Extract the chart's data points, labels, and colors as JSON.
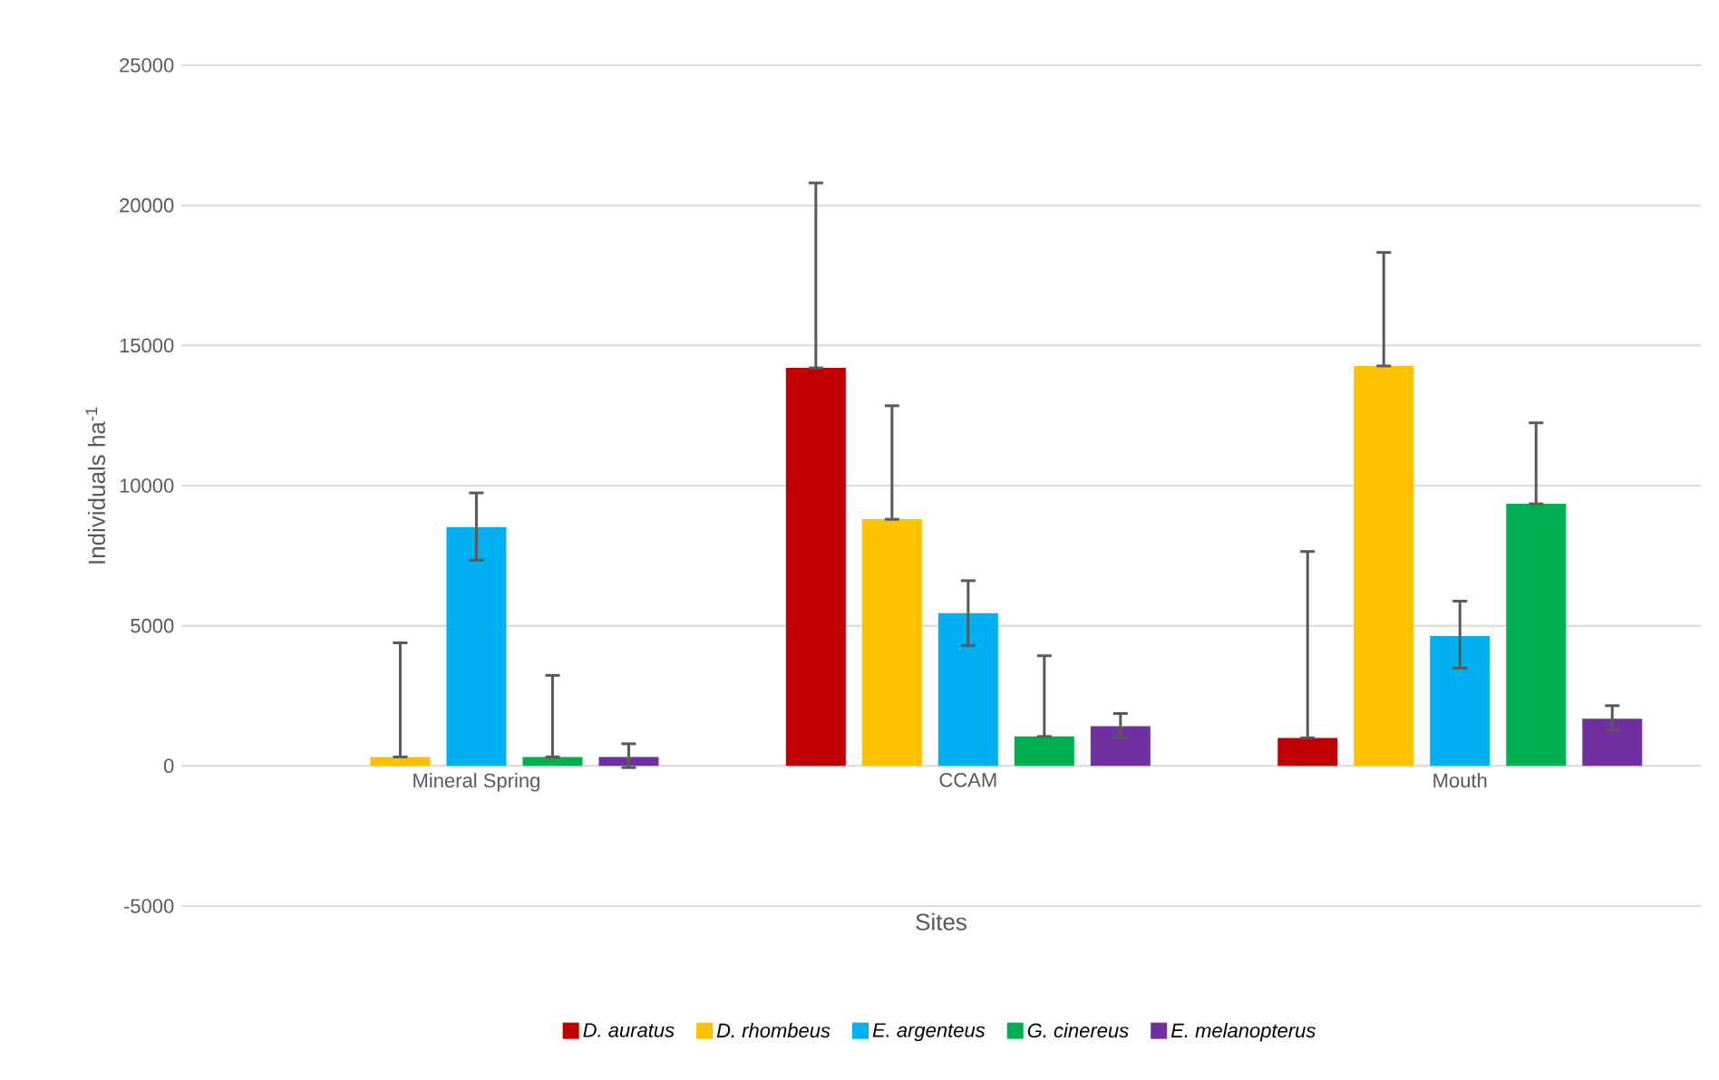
{
  "chart_data": {
    "type": "bar",
    "xlabel": "Sites",
    "ylabel": "Individuals ha$^{-1}$",
    "categories": [
      "Mineral Spring",
      "CCAM",
      "Mouth"
    ],
    "ylim": [
      -5000,
      25000
    ],
    "yticks": [
      -5000,
      0,
      5000,
      10000,
      15000,
      20000,
      25000
    ],
    "grid": "y",
    "legend": "bottom",
    "series": [
      {
        "name": "D. auratus",
        "color": "#c00000",
        "values": [
          null,
          14200,
          1000
        ],
        "errors": [
          null,
          [
            14200,
            20800
          ],
          [
            1000,
            7650
          ]
        ]
      },
      {
        "name": "D. rhombeus",
        "color": "#ffc000",
        "values": [
          320,
          8800,
          14270
        ],
        "errors": [
          [
            320,
            4390
          ],
          [
            8800,
            12850
          ],
          [
            14270,
            18320
          ]
        ]
      },
      {
        "name": "E. argenteus",
        "color": "#00b0f0",
        "values": [
          8520,
          5450,
          4630
        ],
        "errors": [
          [
            7340,
            9740
          ],
          [
            4290,
            6610
          ],
          [
            3490,
            5880
          ]
        ]
      },
      {
        "name": "G. cinereus",
        "color": "#00b050",
        "values": [
          320,
          1050,
          9350
        ],
        "errors": [
          [
            320,
            3230
          ],
          [
            1050,
            3930
          ],
          [
            9350,
            12240
          ]
        ]
      },
      {
        "name": "E. melanopterus",
        "color": "#7030a0",
        "values": [
          320,
          1420,
          1680
        ],
        "errors": [
          [
            -60,
            790
          ],
          [
            1010,
            1870
          ],
          [
            1270,
            2150
          ]
        ]
      }
    ]
  }
}
